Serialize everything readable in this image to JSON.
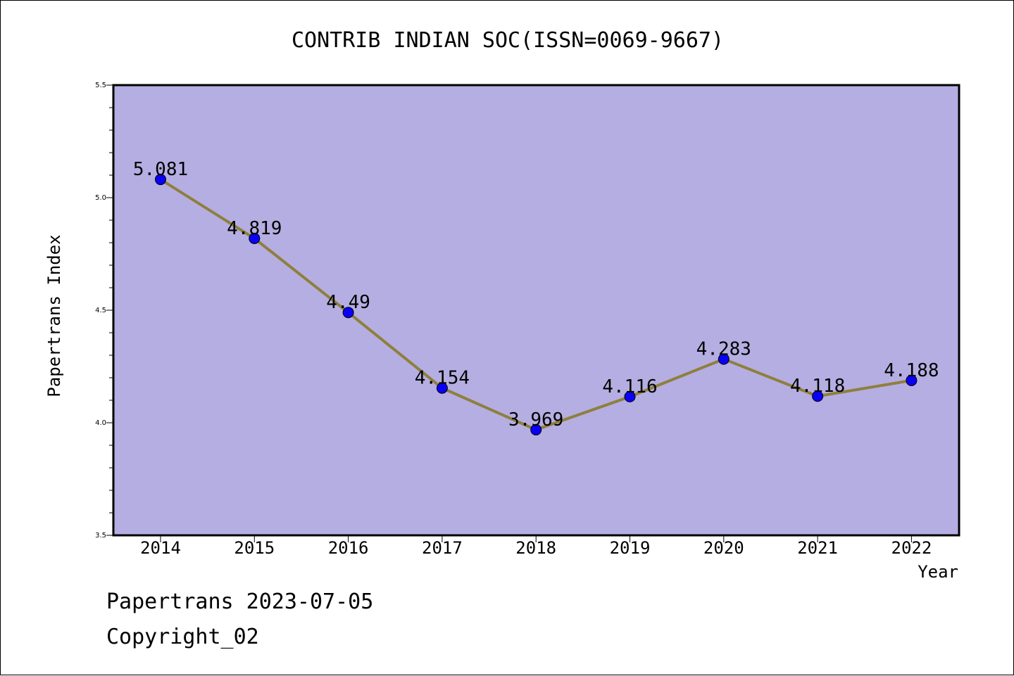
{
  "chart_data": {
    "type": "line",
    "title": "CONTRIB INDIAN SOC(ISSN=0069-9667)",
    "xlabel": "Year",
    "ylabel": "Papertrans Index",
    "x": [
      "2014",
      "2015",
      "2016",
      "2017",
      "2018",
      "2019",
      "2020",
      "2021",
      "2022"
    ],
    "series": [
      {
        "values": [
          5.081,
          4.819,
          4.49,
          4.154,
          3.969,
          4.116,
          4.283,
          4.118,
          4.188
        ],
        "labels": [
          "5.081",
          "4.819",
          "4.49",
          "4.154",
          "3.969",
          "4.116",
          "4.283",
          "4.118",
          "4.188"
        ]
      }
    ],
    "ylim": [
      3.5,
      5.5
    ],
    "yticks": [
      "3.5",
      "4.0",
      "4.5",
      "5.0",
      "5.5"
    ],
    "grid": false,
    "colors": {
      "plot_background": "#b5aee2",
      "line": "#8e7f3d",
      "marker": "#0a00f5"
    }
  },
  "footer": {
    "line1": "Papertrans 2023-07-05",
    "line2": "Copyright_02"
  }
}
